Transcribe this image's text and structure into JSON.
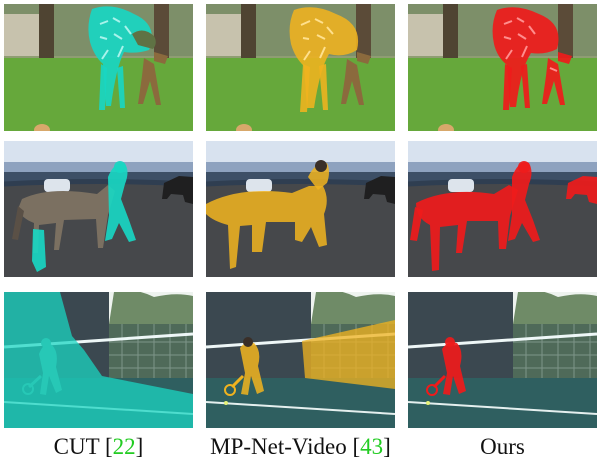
{
  "columns": [
    {
      "method": "CUT",
      "ref": "22",
      "mask_color": "#19d6c2"
    },
    {
      "method": "MP-Net-Video",
      "ref": "43",
      "mask_color": "#f0b31f"
    },
    {
      "method": "Ours",
      "ref": "",
      "mask_color": "#ef1b1b"
    }
  ],
  "rows": [
    "giraffes",
    "horse-and-handler",
    "tennis-player"
  ],
  "colors": {
    "grass": "#66a83b",
    "sky": "#d8e2ef",
    "gravel": "#46484b",
    "court": "#2f5f60",
    "citation_green": "#22cc22"
  }
}
